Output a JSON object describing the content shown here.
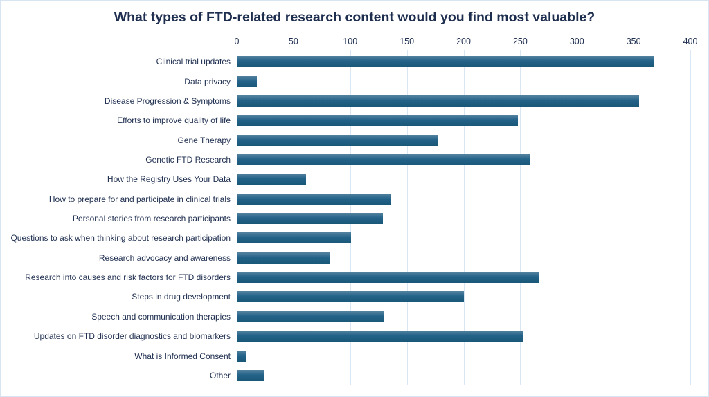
{
  "chart_data": {
    "type": "bar",
    "orientation": "horizontal",
    "title": "What types of FTD-related research content would you find most valuable?",
    "categories": [
      "Clinical trial updates",
      "Data privacy",
      "Disease Progression & Symptoms",
      "Efforts to improve quality of life",
      "Gene Therapy",
      "Genetic FTD Research",
      "How the Registry Uses Your Data",
      "How to prepare for and participate in clinical trials",
      "Personal stories from research participants",
      "Questions to ask when thinking about research participation",
      "Research advocacy and awareness",
      "Research into causes and risk factors for FTD disorders",
      "Steps in drug development",
      "Speech and communication therapies",
      "Updates on FTD disorder diagnostics and biomarkers",
      "What is Informed Consent",
      "Other"
    ],
    "values": [
      368,
      18,
      355,
      248,
      178,
      259,
      61,
      136,
      129,
      101,
      82,
      266,
      200,
      130,
      253,
      8,
      24
    ],
    "xlim": [
      0,
      400
    ],
    "x_ticks": [
      0,
      50,
      100,
      150,
      200,
      250,
      300,
      350,
      400
    ],
    "xlabel": "",
    "ylabel": "",
    "grid": "vertical",
    "legend": "none",
    "axis_position": "top",
    "colors": {
      "bar_gradient_top": "#54839f",
      "bar_gradient_mid": "#246389",
      "bar_gradient_bottom": "#1a5878",
      "gridline": "#d9e7f5",
      "text": "#1e2e4f",
      "chart_border": "#d7e5f2",
      "background": "#ffffff"
    }
  }
}
